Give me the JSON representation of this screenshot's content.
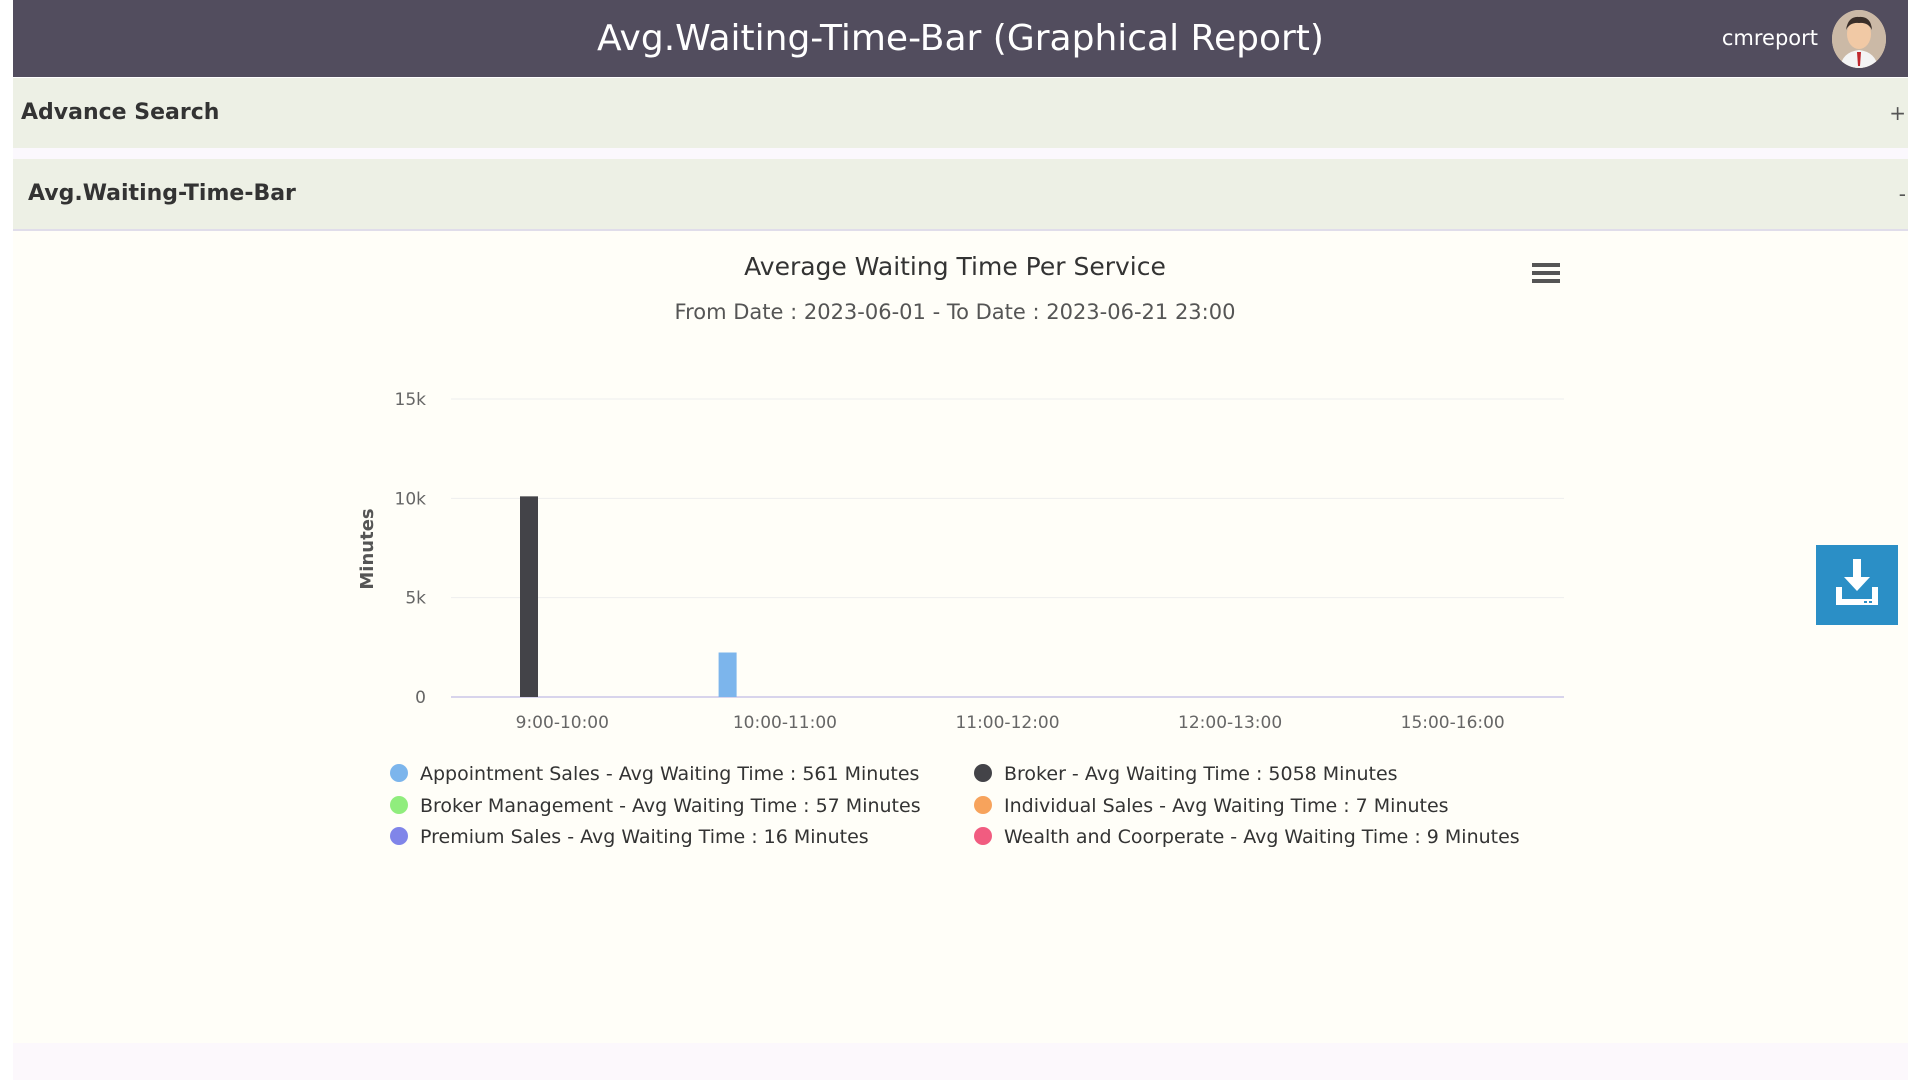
{
  "header": {
    "title": "Avg.Waiting-Time-Bar (Graphical Report)",
    "username": "cmreport"
  },
  "panels": {
    "advance_search": {
      "title": "Advance Search",
      "toggle": "+"
    },
    "chart_panel": {
      "title": "Avg.Waiting-Time-Bar",
      "toggle": "-"
    }
  },
  "chart_data": {
    "type": "bar",
    "title": "Average Waiting Time Per Service",
    "subtitle": "From Date : 2023-06-01 - To Date : 2023-06-21 23:00",
    "xlabel": "",
    "ylabel": "Minutes",
    "ylim": [
      0,
      15000
    ],
    "yticks": [
      0,
      5000,
      10000,
      15000
    ],
    "ytick_labels": [
      "0",
      "5k",
      "10k",
      "15k"
    ],
    "grid": true,
    "legend_position": "bottom",
    "categories": [
      "9:00-10:00",
      "10:00-11:00",
      "11:00-12:00",
      "12:00-13:00",
      "15:00-16:00"
    ],
    "series": [
      {
        "name": "Appointment Sales - Avg Waiting Time : 561 Minutes",
        "color": "#7cb5ec",
        "values": [
          0,
          2240,
          0,
          0,
          0
        ]
      },
      {
        "name": "Broker - Avg Waiting Time : 5058 Minutes",
        "color": "#434348",
        "values": [
          10100,
          0,
          0,
          0,
          0
        ]
      },
      {
        "name": "Broker Management - Avg Waiting Time : 57 Minutes",
        "color": "#90ed7d",
        "values": [
          0,
          0,
          0,
          0,
          0
        ]
      },
      {
        "name": "Individual Sales - Avg Waiting Time : 7 Minutes",
        "color": "#f7a35c",
        "values": [
          0,
          0,
          0,
          0,
          0
        ]
      },
      {
        "name": "Premium Sales - Avg Waiting Time : 16 Minutes",
        "color": "#8085e9",
        "values": [
          0,
          0,
          0,
          0,
          0
        ]
      },
      {
        "name": "Wealth and Coorperate - Avg Waiting Time : 9 Minutes",
        "color": "#f15c80",
        "values": [
          0,
          0,
          0,
          0,
          0
        ]
      }
    ]
  },
  "icons": {
    "menu": "hamburger-menu-icon",
    "download": "download-icon"
  }
}
